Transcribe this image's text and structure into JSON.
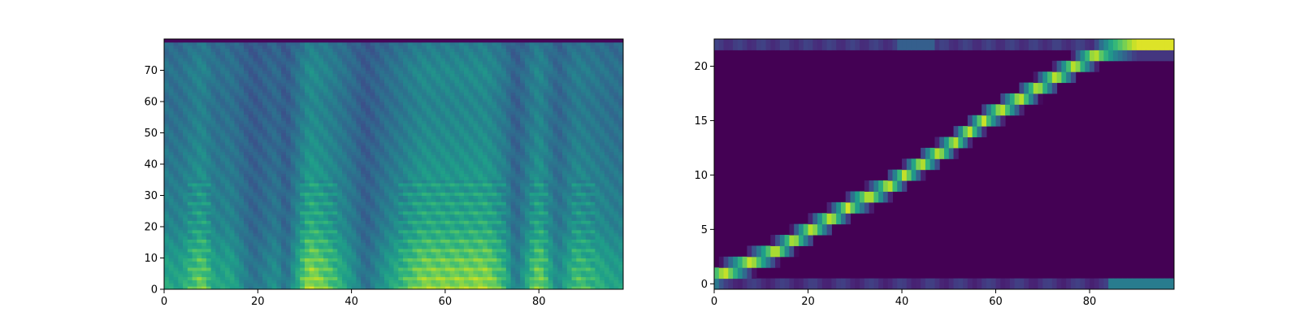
{
  "chart_data": [
    {
      "type": "heatmap",
      "title": "",
      "xlabel": "",
      "ylabel": "",
      "colormap": "viridis",
      "x_range": [
        0,
        98
      ],
      "y_range": [
        0,
        80
      ],
      "xticks": [
        0,
        20,
        40,
        60,
        80
      ],
      "yticks": [
        0,
        10,
        20,
        30,
        40,
        50,
        60,
        70
      ],
      "grid": false,
      "legend": "none",
      "n_frames": 98,
      "n_bins": 80,
      "frames": [
        {
          "x": 0,
          "value": 0.55
        },
        {
          "x": 3,
          "value": 0.5
        },
        {
          "x": 8,
          "value": 0.8
        },
        {
          "x": 11,
          "value": 0.5
        },
        {
          "x": 14,
          "value": 0.55
        },
        {
          "x": 19,
          "value": 0.22
        },
        {
          "x": 24,
          "value": 0.42
        },
        {
          "x": 26,
          "value": 0.2
        },
        {
          "x": 31,
          "value": 0.92
        },
        {
          "x": 35,
          "value": 0.75
        },
        {
          "x": 40,
          "value": 0.45
        },
        {
          "x": 43,
          "value": 0.2
        },
        {
          "x": 47,
          "value": 0.45
        },
        {
          "x": 55,
          "value": 0.85
        },
        {
          "x": 62,
          "value": 0.85
        },
        {
          "x": 69,
          "value": 0.88
        },
        {
          "x": 73,
          "value": 0.6
        },
        {
          "x": 75,
          "value": 0.25
        },
        {
          "x": 80,
          "value": 0.85
        },
        {
          "x": 84,
          "value": 0.35
        },
        {
          "x": 88,
          "value": 0.7
        },
        {
          "x": 96,
          "value": 0.5
        }
      ],
      "bands": [
        {
          "y": 0,
          "value": 1.0
        },
        {
          "y": 10,
          "value": 0.85
        },
        {
          "y": 20,
          "value": 0.62
        },
        {
          "y": 30,
          "value": 0.55
        },
        {
          "y": 40,
          "value": 0.48
        },
        {
          "y": 50,
          "value": 0.42
        },
        {
          "y": 60,
          "value": 0.38
        },
        {
          "y": 70,
          "value": 0.42
        },
        {
          "y": 79,
          "value": 0.32
        }
      ]
    },
    {
      "type": "heatmap",
      "title": "",
      "xlabel": "",
      "ylabel": "",
      "colormap": "viridis",
      "x_range": [
        0,
        98
      ],
      "y_range": [
        -0.5,
        22.5
      ],
      "xticks": [
        0,
        20,
        40,
        60,
        80
      ],
      "yticks": [
        0,
        5,
        10,
        15,
        20
      ],
      "grid": false,
      "legend": "none",
      "n_rows": 23,
      "alignment_path": [
        {
          "x": 0,
          "y": 0.6
        },
        {
          "x": 5,
          "y": 1.5
        },
        {
          "x": 10,
          "y": 2.4
        },
        {
          "x": 14,
          "y": 3.2
        },
        {
          "x": 18,
          "y": 4.3
        },
        {
          "x": 22,
          "y": 5.3
        },
        {
          "x": 26,
          "y": 6.3
        },
        {
          "x": 30,
          "y": 7.4
        },
        {
          "x": 34,
          "y": 8.2
        },
        {
          "x": 38,
          "y": 9.2
        },
        {
          "x": 42,
          "y": 10.4
        },
        {
          "x": 46,
          "y": 11.5
        },
        {
          "x": 50,
          "y": 12.6
        },
        {
          "x": 54,
          "y": 13.9
        },
        {
          "x": 58,
          "y": 15.2
        },
        {
          "x": 62,
          "y": 16.2
        },
        {
          "x": 66,
          "y": 17.2
        },
        {
          "x": 70,
          "y": 18.3
        },
        {
          "x": 74,
          "y": 19.3
        },
        {
          "x": 78,
          "y": 20.3
        },
        {
          "x": 82,
          "y": 21.2
        },
        {
          "x": 85,
          "y": 21.6
        },
        {
          "x": 90,
          "y": 22.0
        }
      ]
    }
  ]
}
